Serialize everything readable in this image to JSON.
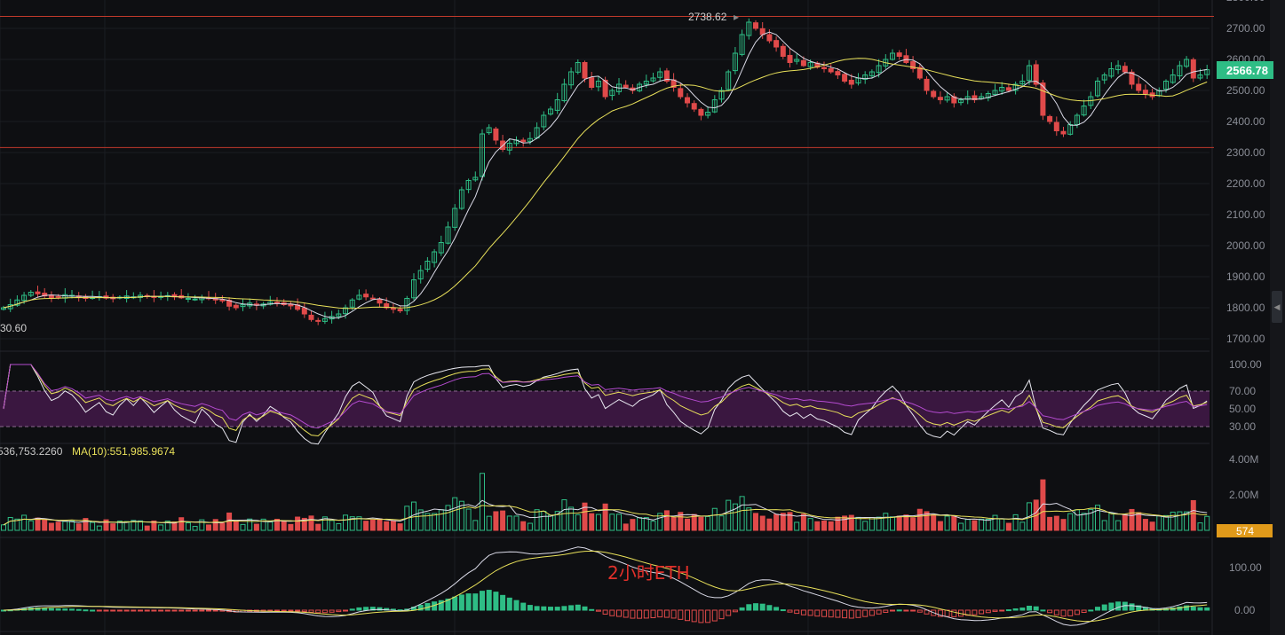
{
  "chart_data": {
    "type": "candlestick",
    "annotation": "2小时ETH",
    "price_axis": {
      "ticks": [
        "1700.00",
        "1800.00",
        "1900.00",
        "2000.00",
        "2100.00",
        "2200.00",
        "2300.00",
        "2400.00",
        "2500.00",
        "2600.00",
        "2700.00"
      ],
      "ylim": [
        1680,
        2800
      ]
    },
    "last_price": "2566.78",
    "high_label": "2738.62",
    "low_label": "30.60",
    "horizontal_lines": [
      2738.62,
      2316
    ],
    "closes": [
      1800,
      1810,
      1825,
      1840,
      1850,
      1845,
      1838,
      1832,
      1835,
      1842,
      1840,
      1836,
      1830,
      1833,
      1836,
      1831,
      1829,
      1834,
      1838,
      1835,
      1840,
      1837,
      1833,
      1836,
      1839,
      1835,
      1832,
      1830,
      1828,
      1833,
      1830,
      1825,
      1822,
      1805,
      1800,
      1810,
      1815,
      1808,
      1812,
      1818,
      1815,
      1810,
      1806,
      1795,
      1780,
      1762,
      1758,
      1765,
      1772,
      1780,
      1800,
      1825,
      1840,
      1835,
      1830,
      1815,
      1800,
      1795,
      1790,
      1830,
      1890,
      1920,
      1950,
      1980,
      2010,
      2060,
      2120,
      2180,
      2210,
      2220,
      2360,
      2380,
      2340,
      2310,
      2330,
      2340,
      2335,
      2345,
      2380,
      2420,
      2440,
      2470,
      2520,
      2560,
      2590,
      2540,
      2510,
      2530,
      2480,
      2500,
      2520,
      2510,
      2500,
      2520,
      2530,
      2540,
      2560,
      2530,
      2510,
      2480,
      2460,
      2440,
      2420,
      2430,
      2470,
      2500,
      2560,
      2620,
      2680,
      2720,
      2700,
      2680,
      2660,
      2640,
      2610,
      2590,
      2600,
      2580,
      2590,
      2575,
      2570,
      2560,
      2550,
      2530,
      2520,
      2540,
      2550,
      2560,
      2580,
      2600,
      2620,
      2610,
      2590,
      2570,
      2540,
      2500,
      2480,
      2470,
      2480,
      2460,
      2470,
      2480,
      2470,
      2480,
      2490,
      2500,
      2510,
      2500,
      2520,
      2530,
      2580,
      2520,
      2420,
      2400,
      2370,
      2360,
      2390,
      2420,
      2450,
      2480,
      2530,
      2550,
      2570,
      2580,
      2560,
      2520,
      2500,
      2490,
      2480,
      2500,
      2530,
      2550,
      2580,
      2600,
      2540,
      2550,
      2566.78
    ],
    "rsi_axis": {
      "ticks": [
        "100.00",
        "70.00",
        "50.00",
        "30.00"
      ],
      "band": [
        30,
        70
      ]
    },
    "volume_axis": {
      "ticks": [
        "4.00M",
        "2.00M"
      ],
      "current": "574"
    },
    "volume_legend": {
      "ma5_value": "536,753.2260",
      "ma10": "MA(10):551,985.9674"
    },
    "macd_axis": {
      "ticks": [
        "100.00",
        "0.00"
      ]
    },
    "colors": {
      "up": "#2ebd85",
      "down": "#e04a4a",
      "ma_fast": "#d9d9e6",
      "ma_slow": "#e8e05a",
      "rsi_band": "#3a1740",
      "rsi_mid": "#b44bd0",
      "hline": "#c0392b",
      "last_price_bg": "#2ebd85",
      "volume_tag_bg": "#e09a1a",
      "annotation": "#e0302a"
    }
  }
}
